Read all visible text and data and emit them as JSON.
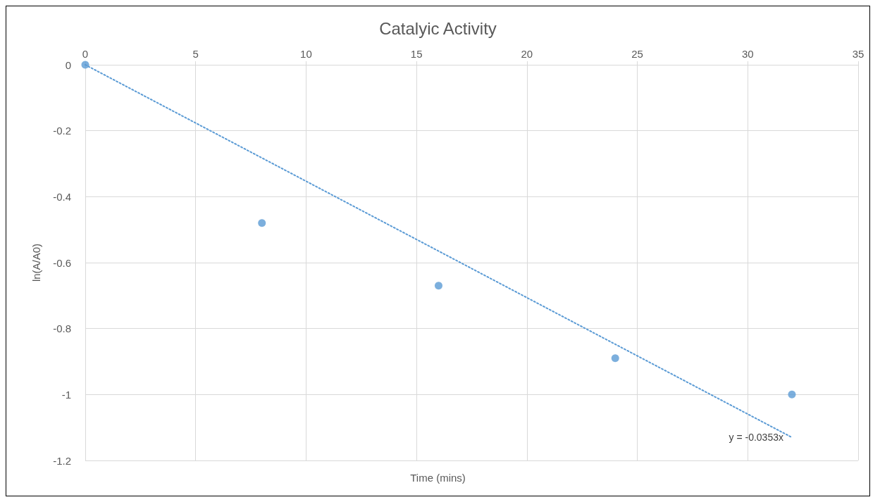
{
  "chart_data": {
    "type": "scatter",
    "title": "Catalyic Activity",
    "xlabel": "Time (mins)",
    "ylabel": "ln(A/A0)",
    "series": [
      {
        "color": "#5b9bd5",
        "x": [
          0,
          8,
          16,
          24,
          32
        ],
        "values": [
          0,
          -0.48,
          -0.67,
          -0.89,
          -1.0
        ],
        "marker": "circle"
      },
      {
        "type": "line",
        "color": "#5b9bd5",
        "x": [
          0,
          32
        ],
        "values": [
          0,
          -1.13
        ],
        "marker": "none",
        "line_style": "dotted"
      }
    ],
    "annotations": [
      {
        "text": "y = -0.0353x",
        "x": 32,
        "y": -1.13
      }
    ],
    "xlim": [
      0,
      35
    ],
    "xticks": [
      0,
      5,
      10,
      15,
      20,
      25,
      30,
      35
    ],
    "ylim": [
      -1.2,
      0
    ],
    "yticks": [
      -1.2,
      -1,
      -0.8,
      -0.6,
      -0.4,
      -0.2,
      0
    ],
    "grid": true
  }
}
